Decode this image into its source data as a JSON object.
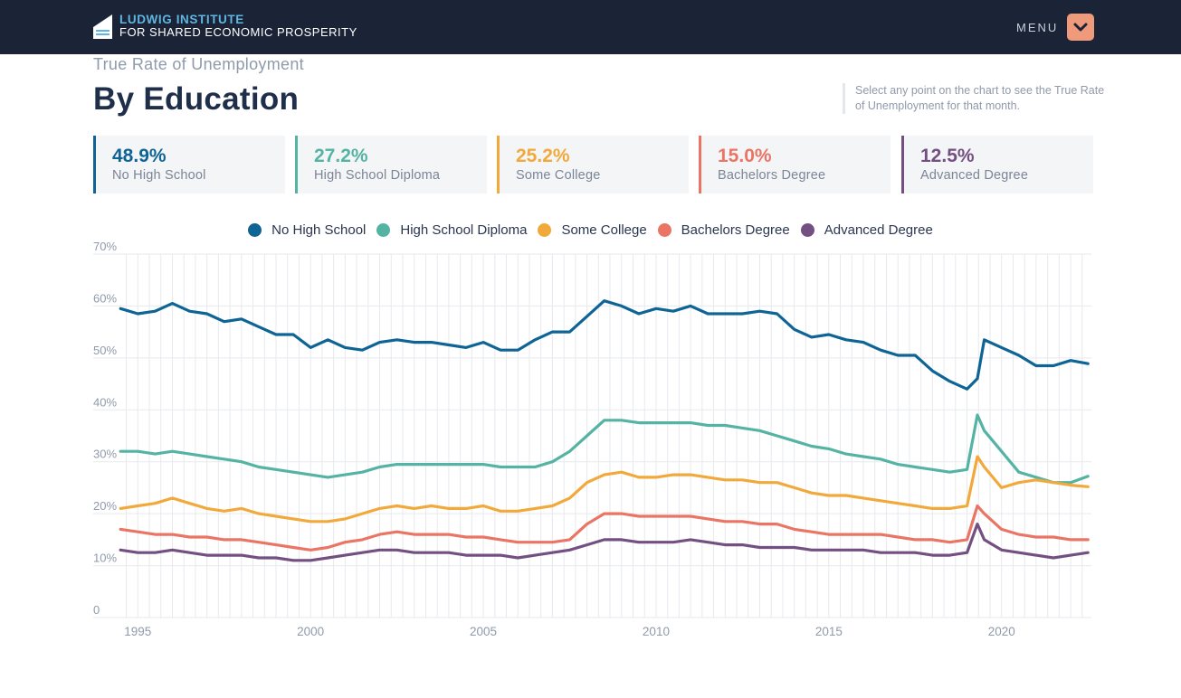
{
  "header": {
    "brand_line1": "LUDWIG INSTITUTE",
    "brand_line2": "FOR SHARED ECONOMIC PROSPERITY",
    "menu_label": "MENU",
    "logo_icon": "flag-logo-icon",
    "menu_icon": "chevron-down-icon"
  },
  "page": {
    "subtitle": "True Rate of Unemployment",
    "title": "By Education",
    "hint": "Select any point on the chart to see the True Rate of Unemployment for that month."
  },
  "cards": [
    {
      "value": "48.9%",
      "label": "No High School",
      "color": "#0f6496"
    },
    {
      "value": "27.2%",
      "label": "High School Diploma",
      "color": "#55b3a4"
    },
    {
      "value": "25.2%",
      "label": "Some College",
      "color": "#f2a93b"
    },
    {
      "value": "15.0%",
      "label": "Bachelors Degree",
      "color": "#ea7565"
    },
    {
      "value": "12.5%",
      "label": "Advanced Degree",
      "color": "#744f82"
    }
  ],
  "chart_data": {
    "type": "line",
    "grid": true,
    "legend_position": "top",
    "ylim": [
      0,
      70
    ],
    "yticks": [
      0,
      10,
      20,
      30,
      40,
      50,
      60,
      70
    ],
    "ytick_labels": [
      "0",
      "10%",
      "20%",
      "30%",
      "40%",
      "50%",
      "60%",
      "70%"
    ],
    "xlim": [
      1994.6,
      2022.6
    ],
    "xticks": [
      1995,
      2000,
      2005,
      2010,
      2015,
      2020
    ],
    "xtick_labels": [
      "1995",
      "2000",
      "2005",
      "2010",
      "2015",
      "2020"
    ],
    "series": [
      {
        "name": "No High School",
        "color": "#0f6496",
        "x": [
          1994.5,
          1995.0,
          1995.5,
          1996.0,
          1996.5,
          1997.0,
          1997.5,
          1998.0,
          1998.5,
          1999.0,
          1999.5,
          2000.0,
          2000.5,
          2001.0,
          2001.5,
          2002.0,
          2002.5,
          2003.0,
          2003.5,
          2004.0,
          2004.5,
          2005.0,
          2005.5,
          2006.0,
          2006.5,
          2007.0,
          2007.5,
          2008.0,
          2008.5,
          2009.0,
          2009.5,
          2010.0,
          2010.5,
          2011.0,
          2011.5,
          2012.0,
          2012.5,
          2013.0,
          2013.5,
          2014.0,
          2014.5,
          2015.0,
          2015.5,
          2016.0,
          2016.5,
          2017.0,
          2017.5,
          2018.0,
          2018.5,
          2019.0,
          2019.3,
          2019.5,
          2020.0,
          2020.5,
          2021.0,
          2021.5,
          2022.0,
          2022.5
        ],
        "values": [
          59.5,
          58.5,
          59,
          60.5,
          59,
          58.5,
          57,
          57.5,
          56,
          54.5,
          54.5,
          52,
          53.5,
          52,
          51.5,
          53,
          53.5,
          53,
          53,
          52.5,
          52,
          53,
          51.5,
          51.5,
          53.5,
          55,
          55,
          58,
          61,
          60,
          58.5,
          59.5,
          59,
          60,
          58.5,
          58.5,
          58.5,
          59,
          58.5,
          55.5,
          54,
          54.5,
          53.5,
          53,
          51.5,
          50.5,
          50.5,
          47.5,
          45.5,
          44,
          46,
          53.5,
          52,
          50.5,
          48.5,
          48.5,
          49.5,
          48.9
        ]
      },
      {
        "name": "High School Diploma",
        "color": "#55b3a4",
        "x": [
          1994.5,
          1995.0,
          1995.5,
          1996.0,
          1996.5,
          1997.0,
          1997.5,
          1998.0,
          1998.5,
          1999.0,
          1999.5,
          2000.0,
          2000.5,
          2001.0,
          2001.5,
          2002.0,
          2002.5,
          2003.0,
          2003.5,
          2004.0,
          2004.5,
          2005.0,
          2005.5,
          2006.0,
          2006.5,
          2007.0,
          2007.5,
          2008.0,
          2008.5,
          2009.0,
          2009.5,
          2010.0,
          2010.5,
          2011.0,
          2011.5,
          2012.0,
          2012.5,
          2013.0,
          2013.5,
          2014.0,
          2014.5,
          2015.0,
          2015.5,
          2016.0,
          2016.5,
          2017.0,
          2017.5,
          2018.0,
          2018.5,
          2019.0,
          2019.3,
          2019.5,
          2020.0,
          2020.5,
          2021.0,
          2021.5,
          2022.0,
          2022.5
        ],
        "values": [
          32,
          32,
          31.5,
          32,
          31.5,
          31,
          30.5,
          30,
          29,
          28.5,
          28,
          27.5,
          27,
          27.5,
          28,
          29,
          29.5,
          29.5,
          29.5,
          29.5,
          29.5,
          29.5,
          29,
          29,
          29,
          30,
          32,
          35,
          38,
          38,
          37.5,
          37.5,
          37.5,
          37.5,
          37,
          37,
          36.5,
          36,
          35,
          34,
          33,
          32.5,
          31.5,
          31,
          30.5,
          29.5,
          29,
          28.5,
          28,
          28.5,
          39,
          36,
          32,
          28,
          27,
          26,
          26,
          27.2
        ]
      },
      {
        "name": "Some College",
        "color": "#f2a93b",
        "x": [
          1994.5,
          1995.0,
          1995.5,
          1996.0,
          1996.5,
          1997.0,
          1997.5,
          1998.0,
          1998.5,
          1999.0,
          1999.5,
          2000.0,
          2000.5,
          2001.0,
          2001.5,
          2002.0,
          2002.5,
          2003.0,
          2003.5,
          2004.0,
          2004.5,
          2005.0,
          2005.5,
          2006.0,
          2006.5,
          2007.0,
          2007.5,
          2008.0,
          2008.5,
          2009.0,
          2009.5,
          2010.0,
          2010.5,
          2011.0,
          2011.5,
          2012.0,
          2012.5,
          2013.0,
          2013.5,
          2014.0,
          2014.5,
          2015.0,
          2015.5,
          2016.0,
          2016.5,
          2017.0,
          2017.5,
          2018.0,
          2018.5,
          2019.0,
          2019.3,
          2019.5,
          2020.0,
          2020.5,
          2021.0,
          2021.5,
          2022.0,
          2022.5
        ],
        "values": [
          21,
          21.5,
          22,
          23,
          22,
          21,
          20.5,
          21,
          20,
          19.5,
          19,
          18.5,
          18.5,
          19,
          20,
          21,
          21.5,
          21,
          21.5,
          21,
          21,
          21.5,
          20.5,
          20.5,
          21,
          21.5,
          23,
          26,
          27.5,
          28,
          27,
          27,
          27.5,
          27.5,
          27,
          26.5,
          26.5,
          26,
          26,
          25,
          24,
          23.5,
          23.5,
          23,
          22.5,
          22,
          21.5,
          21,
          21,
          21.5,
          31,
          29,
          25,
          26,
          26.5,
          26,
          25.5,
          25.2
        ]
      },
      {
        "name": "Bachelors Degree",
        "color": "#ea7565",
        "x": [
          1994.5,
          1995.0,
          1995.5,
          1996.0,
          1996.5,
          1997.0,
          1997.5,
          1998.0,
          1998.5,
          1999.0,
          1999.5,
          2000.0,
          2000.5,
          2001.0,
          2001.5,
          2002.0,
          2002.5,
          2003.0,
          2003.5,
          2004.0,
          2004.5,
          2005.0,
          2005.5,
          2006.0,
          2006.5,
          2007.0,
          2007.5,
          2008.0,
          2008.5,
          2009.0,
          2009.5,
          2010.0,
          2010.5,
          2011.0,
          2011.5,
          2012.0,
          2012.5,
          2013.0,
          2013.5,
          2014.0,
          2014.5,
          2015.0,
          2015.5,
          2016.0,
          2016.5,
          2017.0,
          2017.5,
          2018.0,
          2018.5,
          2019.0,
          2019.3,
          2019.5,
          2020.0,
          2020.5,
          2021.0,
          2021.5,
          2022.0,
          2022.5
        ],
        "values": [
          17,
          16.5,
          16,
          16,
          15.5,
          15.5,
          15,
          15,
          14.5,
          14,
          13.5,
          13,
          13.5,
          14.5,
          15,
          16,
          16.5,
          16,
          16,
          16,
          15.5,
          15.5,
          15,
          14.5,
          14.5,
          14.5,
          15,
          18,
          20,
          20,
          19.5,
          19.5,
          19.5,
          19.5,
          19,
          18.5,
          18.5,
          18,
          18,
          17,
          16.5,
          16,
          16,
          16,
          16,
          15.5,
          15,
          15,
          14.5,
          15,
          21.5,
          20,
          17,
          16,
          15.5,
          15.5,
          15,
          15.0
        ]
      },
      {
        "name": "Advanced Degree",
        "color": "#744f82",
        "x": [
          1994.5,
          1995.0,
          1995.5,
          1996.0,
          1996.5,
          1997.0,
          1997.5,
          1998.0,
          1998.5,
          1999.0,
          1999.5,
          2000.0,
          2000.5,
          2001.0,
          2001.5,
          2002.0,
          2002.5,
          2003.0,
          2003.5,
          2004.0,
          2004.5,
          2005.0,
          2005.5,
          2006.0,
          2006.5,
          2007.0,
          2007.5,
          2008.0,
          2008.5,
          2009.0,
          2009.5,
          2010.0,
          2010.5,
          2011.0,
          2011.5,
          2012.0,
          2012.5,
          2013.0,
          2013.5,
          2014.0,
          2014.5,
          2015.0,
          2015.5,
          2016.0,
          2016.5,
          2017.0,
          2017.5,
          2018.0,
          2018.5,
          2019.0,
          2019.3,
          2019.5,
          2020.0,
          2020.5,
          2021.0,
          2021.5,
          2022.0,
          2022.5
        ],
        "values": [
          13,
          12.5,
          12.5,
          13,
          12.5,
          12,
          12,
          12,
          11.5,
          11.5,
          11,
          11,
          11.5,
          12,
          12.5,
          13,
          13,
          12.5,
          12.5,
          12.5,
          12,
          12,
          12,
          11.5,
          12,
          12.5,
          13,
          14,
          15,
          15,
          14.5,
          14.5,
          14.5,
          15,
          14.5,
          14,
          14,
          13.5,
          13.5,
          13.5,
          13,
          13,
          13,
          13,
          12.5,
          12.5,
          12.5,
          12,
          12,
          12.5,
          18,
          15,
          13,
          12.5,
          12,
          11.5,
          12,
          12.5
        ]
      }
    ]
  }
}
